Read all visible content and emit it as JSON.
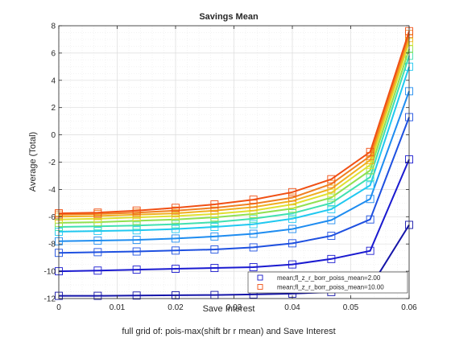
{
  "chart_data": {
    "type": "line",
    "title": "Savings Mean",
    "xlabel": "Save Interest",
    "ylabel": "Average (Total)",
    "caption": "full grid of: pois-max(shift br r mean) and Save Interest",
    "xlim": [
      0,
      0.06
    ],
    "ylim": [
      -12,
      8
    ],
    "xticks": [
      0,
      0.01,
      0.02,
      0.03,
      0.04,
      0.05,
      0.06
    ],
    "xtick_labels": [
      "0",
      "0.01",
      "0.02",
      "0.03",
      "0.04",
      "0.05",
      "0.06"
    ],
    "yticks": [
      -12,
      -10,
      -8,
      -6,
      -4,
      -2,
      0,
      2,
      4,
      6,
      8
    ],
    "ytick_labels": [
      "-12",
      "-10",
      "-8",
      "-6",
      "-4",
      "-2",
      "0",
      "2",
      "4",
      "6",
      "8"
    ],
    "grid": true,
    "legend_position": "bottom-right",
    "legend": [
      {
        "label": "mean;fl_z_r_borr_poiss_mean=2.00",
        "color": "#1414c8"
      },
      {
        "label": "mean;fl_z_r_borr_poiss_mean=10.00",
        "color": "#f05014"
      }
    ],
    "x": [
      0,
      0.00667,
      0.01333,
      0.02,
      0.02667,
      0.03333,
      0.04,
      0.04667,
      0.05333,
      0.06
    ],
    "series": [
      {
        "color": "#1414a8",
        "values": [
          -11.8,
          -11.8,
          -11.78,
          -11.76,
          -11.74,
          -11.7,
          -11.64,
          -11.52,
          -11.2,
          -6.6
        ]
      },
      {
        "color": "#1a1ad0",
        "values": [
          -10.0,
          -9.95,
          -9.88,
          -9.82,
          -9.76,
          -9.7,
          -9.5,
          -9.1,
          -8.5,
          -1.8
        ]
      },
      {
        "color": "#1e50e0",
        "values": [
          -8.65,
          -8.6,
          -8.55,
          -8.48,
          -8.4,
          -8.25,
          -7.95,
          -7.4,
          -6.2,
          1.3
        ]
      },
      {
        "color": "#1e8cf0",
        "values": [
          -7.8,
          -7.75,
          -7.7,
          -7.6,
          -7.45,
          -7.25,
          -6.9,
          -6.25,
          -4.7,
          3.2
        ]
      },
      {
        "color": "#20c8f0",
        "values": [
          -7.1,
          -7.05,
          -7.0,
          -6.9,
          -6.75,
          -6.55,
          -6.15,
          -5.45,
          -3.7,
          5.0
        ]
      },
      {
        "color": "#40e0b0",
        "values": [
          -6.75,
          -6.7,
          -6.65,
          -6.55,
          -6.4,
          -6.15,
          -5.75,
          -5.0,
          -3.1,
          5.8
        ]
      },
      {
        "color": "#90e050",
        "values": [
          -6.45,
          -6.4,
          -6.3,
          -6.2,
          -6.05,
          -5.8,
          -5.4,
          -4.6,
          -2.6,
          6.3
        ]
      },
      {
        "color": "#e0e030",
        "values": [
          -6.2,
          -6.15,
          -6.05,
          -5.95,
          -5.8,
          -5.55,
          -5.1,
          -4.25,
          -2.2,
          6.8
        ]
      },
      {
        "color": "#f0b020",
        "values": [
          -6.0,
          -5.95,
          -5.85,
          -5.75,
          -5.55,
          -5.3,
          -4.85,
          -3.95,
          -1.85,
          7.1
        ]
      },
      {
        "color": "#f08020",
        "values": [
          -5.85,
          -5.8,
          -5.7,
          -5.55,
          -5.35,
          -5.05,
          -4.6,
          -3.6,
          -1.55,
          7.4
        ]
      },
      {
        "color": "#f05014",
        "values": [
          -5.75,
          -5.7,
          -5.55,
          -5.35,
          -5.1,
          -4.75,
          -4.2,
          -3.25,
          -1.25,
          7.6
        ]
      }
    ]
  }
}
